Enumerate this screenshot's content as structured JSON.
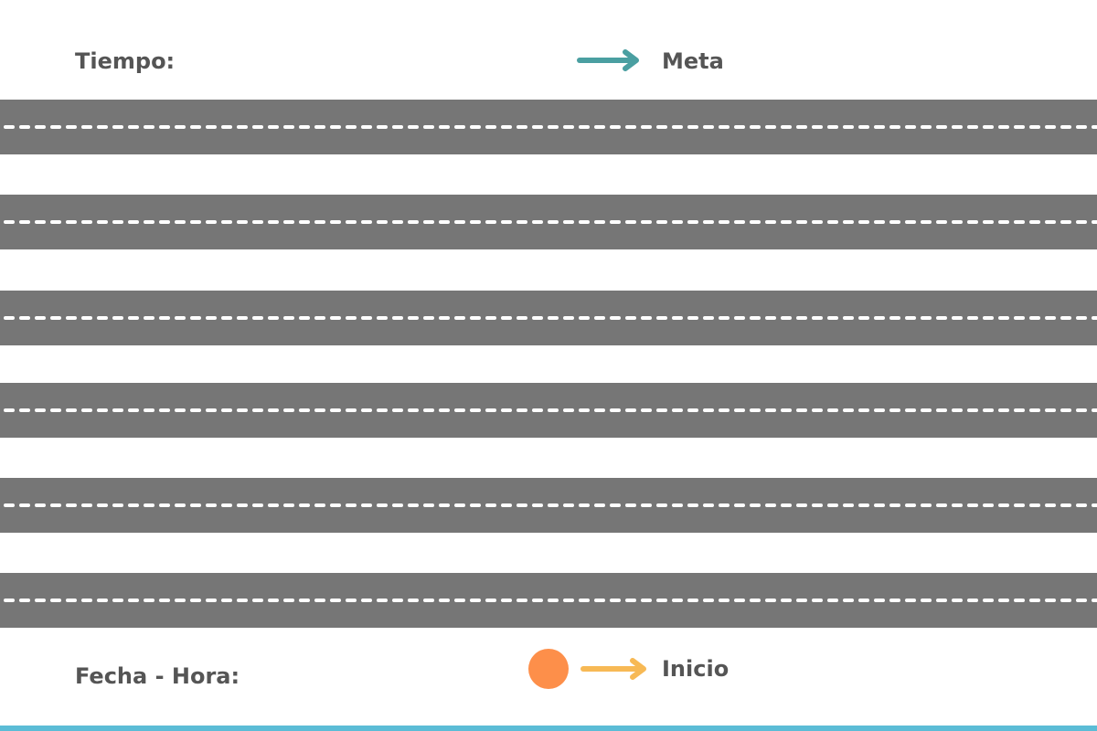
{
  "labels": {
    "tiempo": "Tiempo:",
    "meta": "Meta",
    "fecha_hora": "Fecha - Hora:",
    "inicio": "Inicio"
  },
  "icons": {
    "meta_arrow": "arrow-right-icon",
    "inicio_arrow": "arrow-right-icon",
    "start_marker": "circle-icon"
  },
  "colors": {
    "road": "#767676",
    "lane_marking": "#ffffff",
    "meta_arrow": "#4a9fa1",
    "inicio_arrow": "#f7b955",
    "start_marker": "#fd8f4a",
    "bottom_bar": "#5bbcd6",
    "text": "#555555"
  },
  "road_count": 6
}
